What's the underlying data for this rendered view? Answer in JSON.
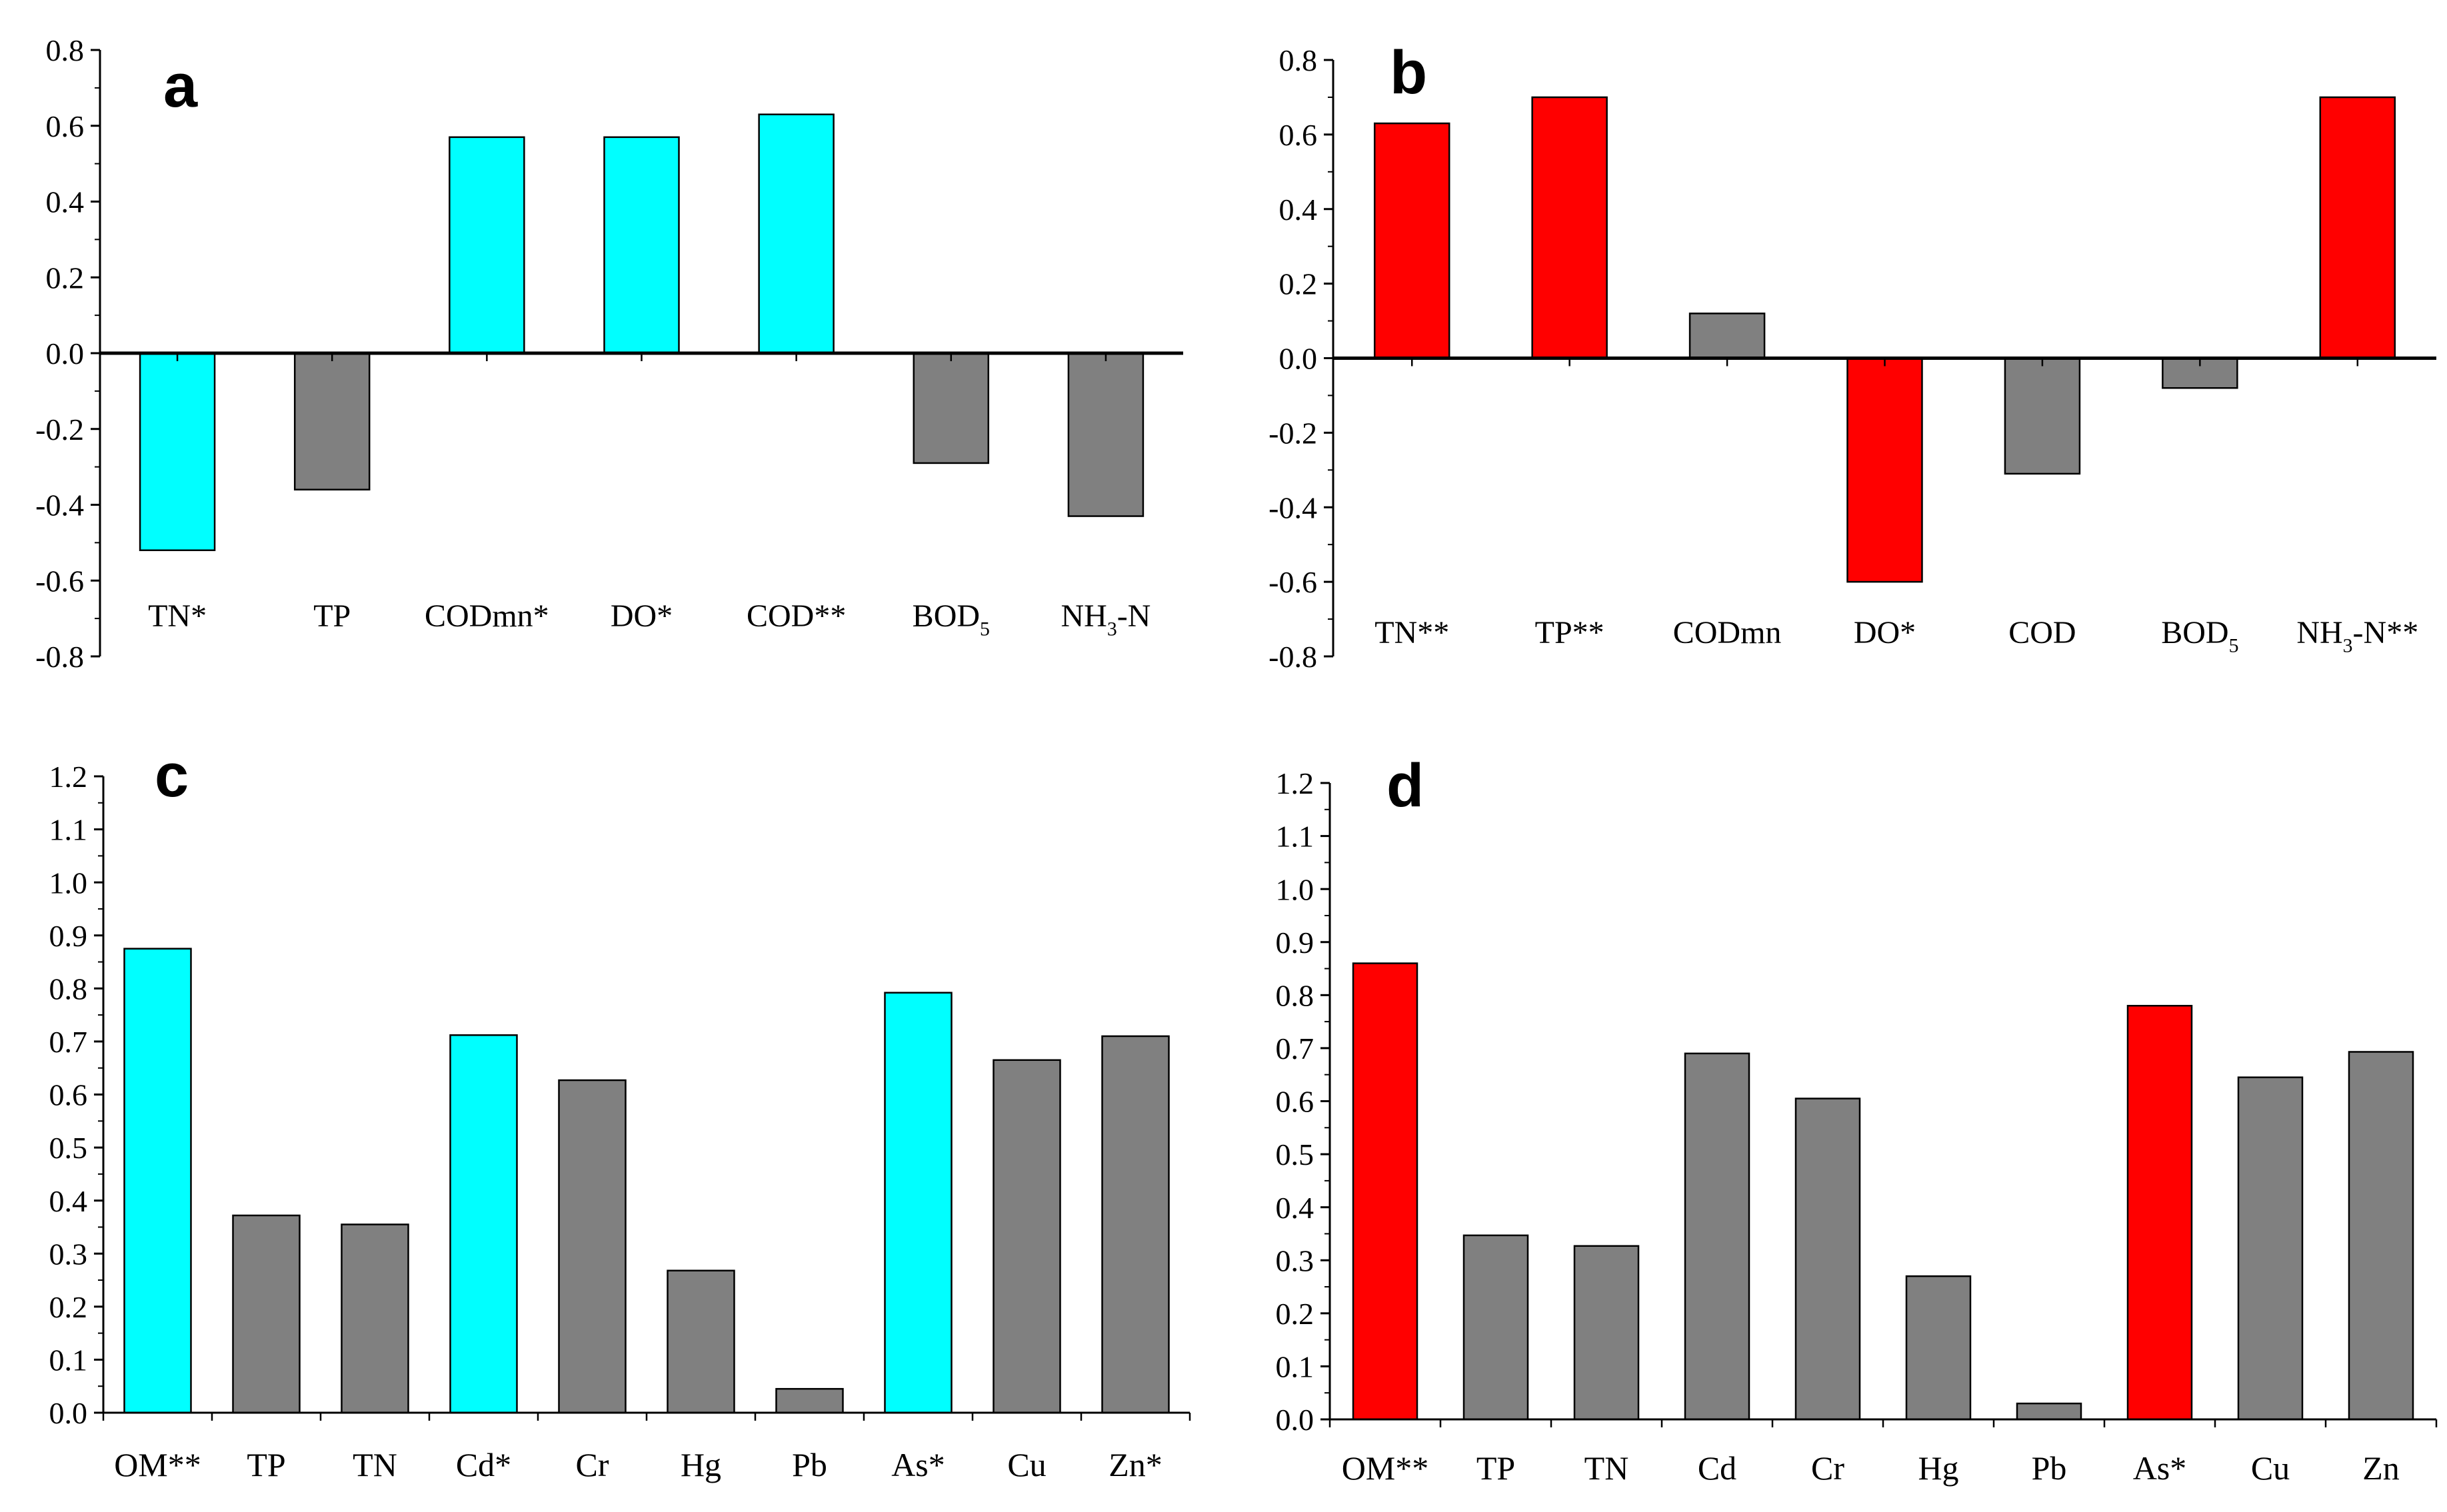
{
  "colors": {
    "gray": "#808080",
    "cyan": "#00FFFF",
    "red": "#FF0000",
    "axis": "#000000"
  },
  "chart_data": [
    {
      "type": "bar",
      "panel_label": "a",
      "highlight_color": "#00FFFF",
      "ylim": [
        -0.8,
        0.8
      ],
      "yticks": [
        "0.8",
        "0.6",
        "0.4",
        "0.2",
        "0.0",
        "-0.2",
        "-0.4",
        "-0.6",
        "-0.8"
      ],
      "categories": [
        {
          "label": "TN*"
        },
        {
          "label": "TP"
        },
        {
          "label": "CODmn*"
        },
        {
          "label": "DO*"
        },
        {
          "label": "COD**"
        },
        {
          "label": "BOD",
          "sub": "5"
        },
        {
          "label": "NH",
          "sub": "3",
          "suffix": "-N"
        }
      ],
      "values": [
        -0.52,
        -0.36,
        0.57,
        0.57,
        0.63,
        -0.29,
        -0.43
      ],
      "highlighted": [
        true,
        false,
        true,
        true,
        true,
        false,
        false
      ]
    },
    {
      "type": "bar",
      "panel_label": "b",
      "highlight_color": "#FF0000",
      "ylim": [
        -0.8,
        0.8
      ],
      "yticks": [
        "0.8",
        "0.6",
        "0.4",
        "0.2",
        "0.0",
        "-0.2",
        "-0.4",
        "-0.6",
        "-0.8"
      ],
      "categories": [
        {
          "label": "TN**"
        },
        {
          "label": "TP**"
        },
        {
          "label": "CODmn"
        },
        {
          "label": "DO*"
        },
        {
          "label": "COD"
        },
        {
          "label": "BOD",
          "sub": "5"
        },
        {
          "label": "NH",
          "sub": "3",
          "suffix": "-N**"
        }
      ],
      "values": [
        0.63,
        0.7,
        0.12,
        -0.6,
        -0.31,
        -0.08,
        0.7
      ],
      "highlighted": [
        true,
        true,
        false,
        true,
        false,
        false,
        true
      ]
    },
    {
      "type": "bar",
      "panel_label": "c",
      "highlight_color": "#00FFFF",
      "ylim": [
        0.0,
        1.2
      ],
      "yticks": [
        "1.2",
        "1.1",
        "1.0",
        "0.9",
        "0.8",
        "0.7",
        "0.6",
        "0.5",
        "0.4",
        "0.3",
        "0.2",
        "0.1",
        "0.0"
      ],
      "categories": [
        {
          "label": "OM**"
        },
        {
          "label": "TP"
        },
        {
          "label": "TN"
        },
        {
          "label": "Cd*"
        },
        {
          "label": "Cr"
        },
        {
          "label": "Hg"
        },
        {
          "label": "Pb"
        },
        {
          "label": "As*"
        },
        {
          "label": "Cu"
        },
        {
          "label": "Zn*"
        }
      ],
      "values": [
        0.875,
        0.372,
        0.355,
        0.712,
        0.627,
        0.268,
        0.045,
        0.792,
        0.665,
        0.71
      ],
      "highlighted": [
        true,
        false,
        false,
        true,
        false,
        false,
        false,
        true,
        false,
        false
      ]
    },
    {
      "type": "bar",
      "panel_label": "d",
      "highlight_color": "#FF0000",
      "ylim": [
        0.0,
        1.2
      ],
      "yticks": [
        "1.2",
        "1.1",
        "1.0",
        "0.9",
        "0.8",
        "0.7",
        "0.6",
        "0.5",
        "0.4",
        "0.3",
        "0.2",
        "0.1",
        "0.0"
      ],
      "categories": [
        {
          "label": "OM**"
        },
        {
          "label": "TP"
        },
        {
          "label": "TN"
        },
        {
          "label": "Cd"
        },
        {
          "label": "Cr"
        },
        {
          "label": "Hg"
        },
        {
          "label": "Pb"
        },
        {
          "label": "As*"
        },
        {
          "label": "Cu"
        },
        {
          "label": "Zn"
        }
      ],
      "values": [
        0.86,
        0.347,
        0.327,
        0.69,
        0.605,
        0.27,
        0.03,
        0.78,
        0.645,
        0.693
      ],
      "highlighted": [
        true,
        false,
        false,
        false,
        false,
        false,
        false,
        true,
        false,
        false
      ]
    }
  ]
}
